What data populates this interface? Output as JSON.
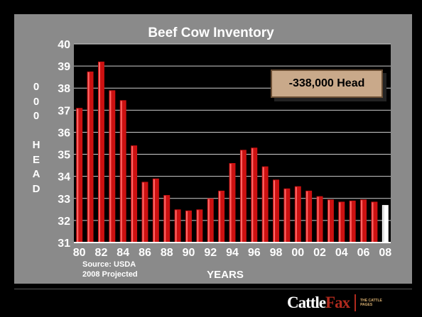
{
  "title": "Beef Cow Inventory",
  "ylabel_chars": [
    "0",
    "0",
    "0",
    "",
    "H",
    "E",
    "A",
    "D"
  ],
  "callout": "-338,000 Head",
  "source_line1": "Source:  USDA",
  "source_line2": "2008 Projected",
  "logo": {
    "word_cattle": "Cattle",
    "word_fax": "Fax",
    "tagline": "THE CATTLE PAGES"
  },
  "colors": {
    "bar": "#cc1111",
    "projected_bar": "#ffffff",
    "panel": "#8a8a8a",
    "plot": "#000000"
  },
  "chart_data": {
    "type": "bar",
    "title": "Beef Cow Inventory",
    "xlabel": "YEARS",
    "ylabel": "000 HEAD",
    "ylim": [
      31,
      40
    ],
    "yticks": [
      31,
      32,
      33,
      34,
      35,
      36,
      37,
      38,
      39,
      40
    ],
    "categories": [
      "80",
      "81",
      "82",
      "83",
      "84",
      "85",
      "86",
      "87",
      "88",
      "89",
      "90",
      "91",
      "92",
      "93",
      "94",
      "95",
      "96",
      "97",
      "98",
      "99",
      "00",
      "01",
      "02",
      "03",
      "04",
      "05",
      "06",
      "07",
      "08"
    ],
    "xtick_labels": [
      "80",
      "82",
      "84",
      "86",
      "88",
      "90",
      "92",
      "94",
      "96",
      "98",
      "00",
      "02",
      "04",
      "06",
      "08"
    ],
    "values": [
      37.1,
      38.75,
      39.2,
      37.9,
      37.45,
      35.4,
      33.75,
      33.9,
      33.15,
      32.5,
      32.45,
      32.5,
      33.0,
      33.35,
      34.6,
      35.2,
      35.3,
      34.45,
      33.85,
      33.45,
      33.55,
      33.35,
      33.1,
      32.95,
      32.85,
      32.9,
      32.95,
      32.85,
      32.7
    ],
    "projected": [
      "08"
    ],
    "grid": true
  }
}
